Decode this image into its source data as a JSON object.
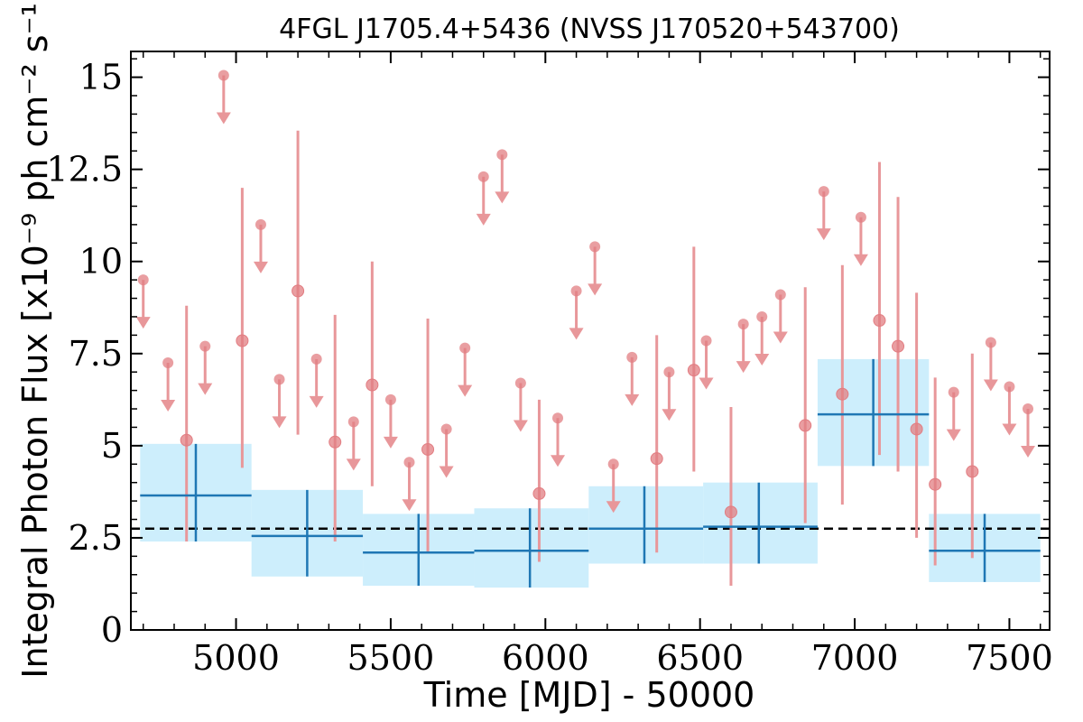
{
  "chart_data": {
    "type": "scatter",
    "title": "4FGL J1705.4+5436 (NVSS J170520+543700)",
    "xlabel": "Time [MJD] - 50000",
    "ylabel": "Integral Photon Flux [x10⁻⁹ ph cm⁻² s⁻¹]",
    "xlim": [
      4660,
      7630
    ],
    "ylim": [
      0,
      15.7
    ],
    "x_ticks": [
      5000,
      5500,
      6000,
      6500,
      7000,
      7500
    ],
    "x_tick_labels": [
      "5000",
      "5500",
      "6000",
      "6500",
      "7000",
      "7500"
    ],
    "y_ticks": [
      0,
      2.5,
      5,
      7.5,
      10,
      12.5,
      15
    ],
    "y_tick_labels": [
      "0",
      "2.5",
      "5",
      "7.5",
      "10",
      "12.5",
      "15"
    ],
    "reference_line": {
      "y": 2.75,
      "style": "dashed"
    },
    "colors": {
      "points": "#e8979a",
      "points_fill": "#e27d82",
      "bins": "#1f77b4",
      "bin_band": "#cdeefc",
      "reference": "#000000"
    },
    "series": [
      {
        "kind": "short-bin",
        "detections": [
          {
            "x": 4840,
            "y": 5.15,
            "ylo": 2.4,
            "yhi": 8.8
          },
          {
            "x": 5020,
            "y": 7.85,
            "ylo": 4.4,
            "yhi": 12.0
          },
          {
            "x": 5200,
            "y": 9.2,
            "ylo": 5.3,
            "yhi": 13.55
          },
          {
            "x": 5320,
            "y": 5.1,
            "ylo": 2.4,
            "yhi": 8.55
          },
          {
            "x": 5440,
            "y": 6.65,
            "ylo": 3.9,
            "yhi": 10.0
          },
          {
            "x": 5620,
            "y": 4.9,
            "ylo": 2.1,
            "yhi": 8.45
          },
          {
            "x": 5980,
            "y": 3.7,
            "ylo": 1.85,
            "yhi": 6.25
          },
          {
            "x": 6360,
            "y": 4.65,
            "ylo": 2.1,
            "yhi": 8.0
          },
          {
            "x": 6480,
            "y": 7.05,
            "ylo": 4.3,
            "yhi": 10.4
          },
          {
            "x": 6600,
            "y": 3.2,
            "ylo": 1.2,
            "yhi": 6.05
          },
          {
            "x": 6840,
            "y": 5.55,
            "ylo": 2.9,
            "yhi": 9.3
          },
          {
            "x": 6960,
            "y": 6.4,
            "ylo": 3.4,
            "yhi": 9.9
          },
          {
            "x": 7080,
            "y": 8.4,
            "ylo": 4.75,
            "yhi": 12.7
          },
          {
            "x": 7140,
            "y": 7.7,
            "ylo": 4.3,
            "yhi": 11.75
          },
          {
            "x": 7200,
            "y": 5.45,
            "ylo": 2.5,
            "yhi": 9.15
          },
          {
            "x": 7260,
            "y": 3.95,
            "ylo": 1.75,
            "yhi": 6.85
          },
          {
            "x": 7380,
            "y": 4.3,
            "ylo": 1.95,
            "yhi": 7.5
          }
        ],
        "upper_limits": [
          {
            "x": 4700,
            "y": 9.5
          },
          {
            "x": 4780,
            "y": 7.25
          },
          {
            "x": 4900,
            "y": 7.7
          },
          {
            "x": 4960,
            "y": 15.05
          },
          {
            "x": 5080,
            "y": 11.0
          },
          {
            "x": 5140,
            "y": 6.8
          },
          {
            "x": 5260,
            "y": 7.35
          },
          {
            "x": 5380,
            "y": 5.65
          },
          {
            "x": 5500,
            "y": 6.25
          },
          {
            "x": 5560,
            "y": 4.55
          },
          {
            "x": 5680,
            "y": 5.45
          },
          {
            "x": 5740,
            "y": 7.65
          },
          {
            "x": 5800,
            "y": 12.3
          },
          {
            "x": 5860,
            "y": 12.9
          },
          {
            "x": 5920,
            "y": 6.7
          },
          {
            "x": 6040,
            "y": 5.75
          },
          {
            "x": 6100,
            "y": 9.2
          },
          {
            "x": 6160,
            "y": 10.4
          },
          {
            "x": 6220,
            "y": 4.5
          },
          {
            "x": 6280,
            "y": 7.4
          },
          {
            "x": 6400,
            "y": 7.0
          },
          {
            "x": 6520,
            "y": 7.85
          },
          {
            "x": 6640,
            "y": 8.3
          },
          {
            "x": 6700,
            "y": 8.5
          },
          {
            "x": 6760,
            "y": 9.1
          },
          {
            "x": 6900,
            "y": 11.9
          },
          {
            "x": 7020,
            "y": 11.2
          },
          {
            "x": 7320,
            "y": 6.45
          },
          {
            "x": 7440,
            "y": 7.8
          },
          {
            "x": 7500,
            "y": 6.6
          },
          {
            "x": 7560,
            "y": 6.0
          }
        ]
      },
      {
        "kind": "long-bin",
        "bins": [
          {
            "x": 4870,
            "xlo": 4690,
            "xhi": 5050,
            "y": 3.65,
            "ylo": 2.4,
            "yhi": 5.05
          },
          {
            "x": 5230,
            "xlo": 5050,
            "xhi": 5410,
            "y": 2.55,
            "ylo": 1.45,
            "yhi": 3.8
          },
          {
            "x": 5590,
            "xlo": 5410,
            "xhi": 5770,
            "y": 2.1,
            "ylo": 1.2,
            "yhi": 3.15
          },
          {
            "x": 5950,
            "xlo": 5770,
            "xhi": 6140,
            "y": 2.15,
            "ylo": 1.15,
            "yhi": 3.3
          },
          {
            "x": 6320,
            "xlo": 6140,
            "xhi": 6510,
            "y": 2.75,
            "ylo": 1.8,
            "yhi": 3.9
          },
          {
            "x": 6690,
            "xlo": 6510,
            "xhi": 6880,
            "y": 2.8,
            "ylo": 1.8,
            "yhi": 4.0
          },
          {
            "x": 7060,
            "xlo": 6880,
            "xhi": 7240,
            "y": 5.85,
            "ylo": 4.45,
            "yhi": 7.35
          },
          {
            "x": 7420,
            "xlo": 7240,
            "xhi": 7600,
            "y": 2.15,
            "ylo": 1.3,
            "yhi": 3.15
          }
        ]
      }
    ]
  }
}
